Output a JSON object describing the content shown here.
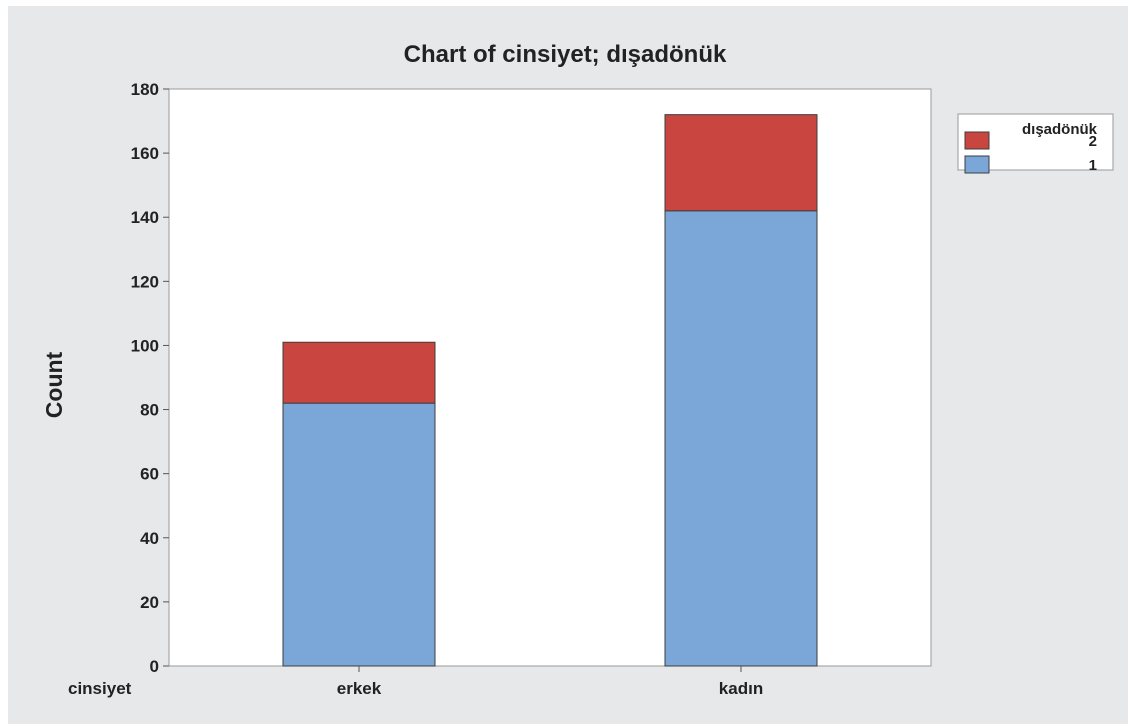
{
  "chart_data": {
    "type": "bar",
    "stacked": true,
    "title": "Chart of cinsiyet; dışadönük",
    "xlabel": "cinsiyet",
    "ylabel": "Count",
    "categories": [
      "erkek",
      "kadın"
    ],
    "series": [
      {
        "name": "1",
        "values": [
          82,
          142
        ],
        "color": "#7BA7D8"
      },
      {
        "name": "2",
        "values": [
          19,
          30
        ],
        "color": "#C94540"
      }
    ],
    "ylim": [
      0,
      180
    ],
    "yticks": [
      0,
      20,
      40,
      60,
      80,
      100,
      120,
      140,
      160,
      180
    ],
    "legend": {
      "title": "dışadönük",
      "position": "top-right",
      "entries": [
        "2",
        "1"
      ]
    },
    "colors": {
      "figure_background": "#E7E8EA",
      "plot_background": "#FFFFFF",
      "bar_edge": "#3E3E3E"
    }
  }
}
